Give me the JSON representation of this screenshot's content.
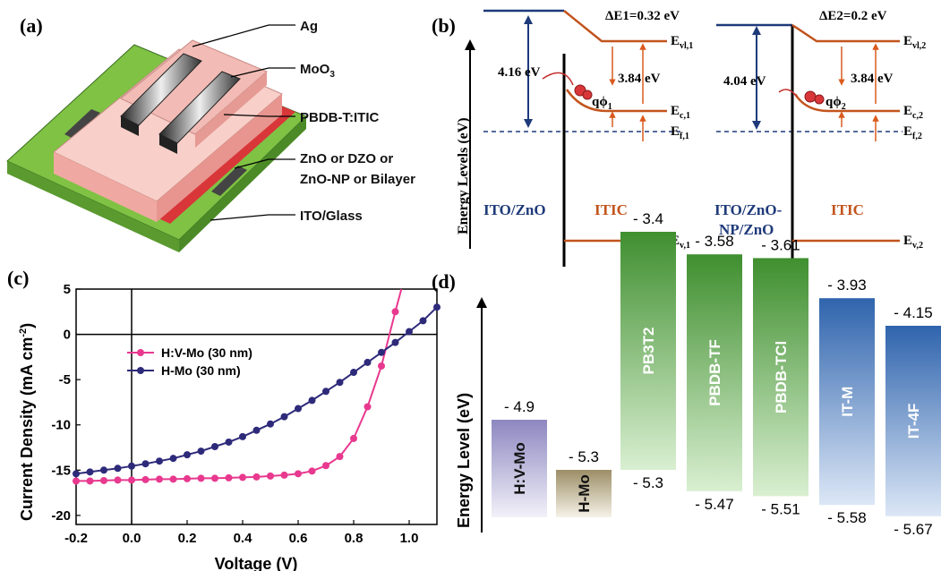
{
  "panel_a": {
    "label": "(a)",
    "layers": [
      "Ag",
      "MoO3",
      "PBDB-T:ITIC",
      "ZnO or DZO or",
      "ZnO-NP or Bilayer",
      "ITO/Glass"
    ],
    "colors": {
      "glass": "#7fc244",
      "ito": "#d9363a",
      "active": "#f4b4ae",
      "ag": "#555555"
    }
  },
  "panel_b": {
    "label": "(b)",
    "ylabel": "Energy Levels (eV)",
    "left": {
      "delta_e": "ΔE1=0.32 eV",
      "barrier": "4.16 eV",
      "gap": "3.84 eV",
      "phi": "qϕ1",
      "ev1": "Ev1,1",
      "ec": "Ec,1",
      "ef": "Ef,1",
      "ev": "Ev,1",
      "cathode": "ITO/ZnO",
      "material": "ITIC"
    },
    "right": {
      "delta_e": "ΔE2=0.2 eV",
      "barrier": "4.04 eV",
      "gap": "3.84 eV",
      "phi": "qϕ2",
      "ev1": "Ev1,2",
      "ec": "Ec,2",
      "ef": "Ef,2",
      "ev": "Ev,2",
      "cathode_1": "ITO/ZnO-",
      "cathode_2": "NP/ZnO",
      "material": "ITIC"
    },
    "colors": {
      "band": "#c2541d",
      "metal": "#1e3a7a",
      "arrow_up": "#d95a1e",
      "arrow_blue": "#1e3a7a"
    }
  },
  "chart_data": [
    {
      "type": "line",
      "panel": "(c)",
      "xlabel": "Voltage (V)",
      "ylabel": "Current Density (mA cm-2)",
      "xlim": [
        -0.2,
        1.1
      ],
      "ylim": [
        -21,
        5
      ],
      "xticks": [
        "-0.2",
        "0.0",
        "0.2",
        "0.4",
        "0.6",
        "0.8",
        "1.0"
      ],
      "yticks": [
        "5",
        "0",
        "-5",
        "-10",
        "-15",
        "-20"
      ],
      "series": [
        {
          "name": "H:V-Mo (30 nm)",
          "color": "#e8398f",
          "x": [
            -0.2,
            -0.15,
            -0.1,
            -0.05,
            0.0,
            0.05,
            0.1,
            0.15,
            0.2,
            0.25,
            0.3,
            0.35,
            0.4,
            0.45,
            0.5,
            0.55,
            0.6,
            0.65,
            0.7,
            0.75,
            0.8,
            0.85,
            0.9,
            0.95
          ],
          "y": [
            -16.2,
            -16.2,
            -16.15,
            -16.1,
            -16.1,
            -16.05,
            -16.0,
            -16.0,
            -15.95,
            -15.9,
            -15.9,
            -15.85,
            -15.8,
            -15.75,
            -15.65,
            -15.55,
            -15.4,
            -15.1,
            -14.5,
            -13.5,
            -11.5,
            -8.0,
            -3.5,
            2.5
          ]
        },
        {
          "name": "H-Mo (30 nm)",
          "color": "#2e2a7a",
          "x": [
            -0.2,
            -0.15,
            -0.1,
            -0.05,
            0.0,
            0.05,
            0.1,
            0.15,
            0.2,
            0.25,
            0.3,
            0.35,
            0.4,
            0.45,
            0.5,
            0.55,
            0.6,
            0.65,
            0.7,
            0.75,
            0.8,
            0.85,
            0.9,
            0.95,
            1.0,
            1.05,
            1.1
          ],
          "y": [
            -15.4,
            -15.2,
            -15.0,
            -14.8,
            -14.55,
            -14.3,
            -14.0,
            -13.7,
            -13.3,
            -12.9,
            -12.4,
            -11.9,
            -11.3,
            -10.6,
            -9.9,
            -9.1,
            -8.2,
            -7.3,
            -6.3,
            -5.3,
            -4.2,
            -3.1,
            -2.0,
            -0.9,
            0.3,
            1.5,
            3.0
          ]
        }
      ]
    },
    {
      "type": "bar",
      "panel": "(d)",
      "ylabel": "Energy Level (eV)",
      "categories": [
        "H:V-Mo",
        "H-Mo",
        "PB3T2",
        "PBDB-TF",
        "PBDB-TCl",
        "IT-M",
        "IT-4F"
      ],
      "top_values": [
        -4.9,
        -5.3,
        -3.4,
        -3.58,
        -3.61,
        -3.93,
        -4.15
      ],
      "bottom_values": [
        null,
        null,
        -5.3,
        -5.47,
        -5.51,
        -5.58,
        -5.67
      ],
      "top_labels": [
        "- 4.9",
        "- 5.3",
        "- 3.4",
        "- 3.58",
        "- 3.61",
        "- 3.93",
        "- 4.15"
      ],
      "bottom_labels": [
        "",
        "",
        "- 5.3",
        "- 5.47",
        "- 5.51",
        "- 5.58",
        "- 5.67"
      ],
      "colors": [
        "#8d87c0",
        "#a99a73",
        "#55a043",
        "#55a043",
        "#55a043",
        "#3f74b8",
        "#3f74b8"
      ]
    }
  ]
}
